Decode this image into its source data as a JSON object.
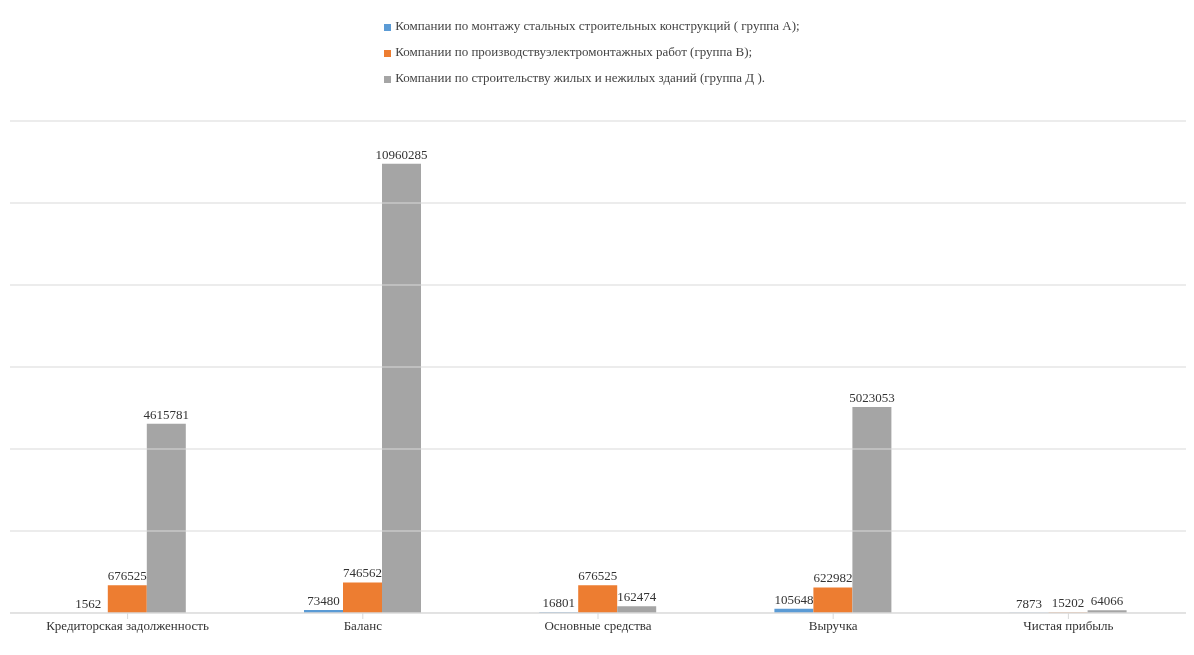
{
  "chart_data": {
    "type": "bar",
    "categories": [
      "Кредиторская задолженность",
      "Баланс",
      "Основные средства",
      "Выручка",
      "Чистая прибыль"
    ],
    "series": [
      {
        "name": "Компании по монтажу стальных строительных конструкций ( группа А);",
        "color": "#5b9bd5",
        "values": [
          1562,
          73480,
          16801,
          105648,
          7873
        ]
      },
      {
        "name": "Компании по производствуэлектромонтажных работ (группа В);",
        "color": "#ed7d31",
        "values": [
          676525,
          746562,
          676525,
          622982,
          15202
        ]
      },
      {
        "name": "Компании по строительству жилых и нежилых зданий (группа Д ).",
        "color": "#a5a5a5",
        "values": [
          4615781,
          10960285,
          162474,
          5023053,
          64066
        ]
      }
    ],
    "ylim": [
      0,
      12000000
    ],
    "yticks": [
      {
        "value": 0,
        "label": null
      },
      {
        "value": 2000000,
        "label": null
      },
      {
        "value": 4000000,
        "label": null
      },
      {
        "value": 6000000,
        "label": null
      },
      {
        "value": 8000000,
        "label": null
      },
      {
        "value": 10000000,
        "label": null
      },
      {
        "value": 12000000,
        "label": null
      }
    ],
    "tick_labels": "x",
    "grid": "y",
    "legend": "top",
    "data_labels": true
  }
}
